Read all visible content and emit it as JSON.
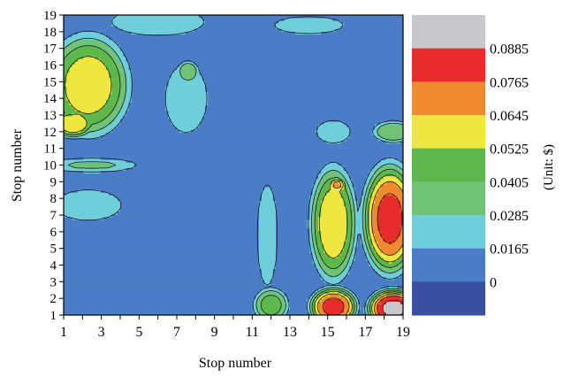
{
  "chart_data": {
    "type": "heatmap",
    "subtype": "filled-contour",
    "xlabel": "Stop number",
    "ylabel": "Stop number",
    "colorbar_label": "(Unit: $)",
    "xlim": [
      1,
      19
    ],
    "ylim": [
      1,
      19
    ],
    "x_ticks": [
      1,
      3,
      5,
      7,
      9,
      11,
      13,
      15,
      17,
      19
    ],
    "y_ticks": [
      1,
      2,
      3,
      4,
      5,
      6,
      7,
      8,
      9,
      10,
      11,
      12,
      13,
      14,
      15,
      16,
      17,
      18,
      19
    ],
    "contour_levels": [
      0,
      0.0165,
      0.0285,
      0.0405,
      0.0525,
      0.0645,
      0.0765,
      0.0885
    ],
    "colorbar_tick_labels": [
      "0.0885",
      "0.0765",
      "0.0645",
      "0.0525",
      "0.0405",
      "0.0285",
      "0.0165",
      "0"
    ],
    "colors": [
      "#3a4fa0",
      "#4a7cc8",
      "#6ecfda",
      "#70c277",
      "#5cb84a",
      "#f0e640",
      "#f08a30",
      "#e82b2b",
      "#c8c8cc"
    ],
    "features": [
      {
        "x": 2.3,
        "y": 14.8,
        "sx": 2.3,
        "sy": 3.2,
        "peak": 0.058
      },
      {
        "x": 1.5,
        "y": 12.5,
        "sx": 1.2,
        "sy": 0.9,
        "peak": 0.062
      },
      {
        "x": 2.5,
        "y": 10.0,
        "sx": 2.8,
        "sy": 0.5,
        "peak": 0.03
      },
      {
        "x": 2.3,
        "y": 7.6,
        "sx": 2.5,
        "sy": 1.3,
        "peak": 0.022
      },
      {
        "x": 7.5,
        "y": 14.0,
        "sx": 1.4,
        "sy": 2.6,
        "peak": 0.026
      },
      {
        "x": 7.6,
        "y": 15.6,
        "sx": 0.6,
        "sy": 0.7,
        "peak": 0.04
      },
      {
        "x": 10.0,
        "y": 13.5,
        "sx": 1.0,
        "sy": 3.5,
        "peak": 0.012
      },
      {
        "x": 9.7,
        "y": 10.0,
        "sx": 4.0,
        "sy": 1.0,
        "peak": 0.01
      },
      {
        "x": 5.0,
        "y": 16.2,
        "sx": 3.5,
        "sy": 1.2,
        "peak": 0.012
      },
      {
        "x": 6.0,
        "y": 18.6,
        "sx": 3.0,
        "sy": 1.0,
        "peak": 0.028
      },
      {
        "x": 14.0,
        "y": 18.4,
        "sx": 3.5,
        "sy": 1.0,
        "peak": 0.018
      },
      {
        "x": 17.2,
        "y": 13.0,
        "sx": 2.2,
        "sy": 1.2,
        "peak": 0.014
      },
      {
        "x": 15.3,
        "y": 12.0,
        "sx": 1.2,
        "sy": 0.9,
        "peak": 0.024
      },
      {
        "x": 18.5,
        "y": 12.0,
        "sx": 1.2,
        "sy": 0.7,
        "peak": 0.04
      },
      {
        "x": 12.7,
        "y": 12.3,
        "sx": 0.5,
        "sy": 0.9,
        "peak": 0.01
      },
      {
        "x": 11.8,
        "y": 5.8,
        "sx": 0.8,
        "sy": 4.5,
        "peak": 0.021
      },
      {
        "x": 12.0,
        "y": 1.6,
        "sx": 1.0,
        "sy": 1.1,
        "peak": 0.045
      },
      {
        "x": 15.3,
        "y": 6.5,
        "sx": 1.3,
        "sy": 3.6,
        "peak": 0.06
      },
      {
        "x": 15.5,
        "y": 8.8,
        "sx": 0.5,
        "sy": 0.5,
        "peak": 0.068
      },
      {
        "x": 15.3,
        "y": 1.5,
        "sx": 1.3,
        "sy": 1.2,
        "peak": 0.08
      },
      {
        "x": 18.3,
        "y": 6.8,
        "sx": 1.5,
        "sy": 3.4,
        "peak": 0.08
      },
      {
        "x": 18.5,
        "y": 1.4,
        "sx": 1.4,
        "sy": 1.2,
        "peak": 0.092
      },
      {
        "x": 8.0,
        "y": 2.0,
        "sx": 7.0,
        "sy": 1.1,
        "peak": 0.012
      },
      {
        "x": 17.5,
        "y": 2.5,
        "sx": 1.8,
        "sy": 1.2,
        "peak": 0.013
      },
      {
        "x": 5.0,
        "y": 4.8,
        "sx": 1.0,
        "sy": 0.8,
        "peak": 0.011
      }
    ]
  }
}
